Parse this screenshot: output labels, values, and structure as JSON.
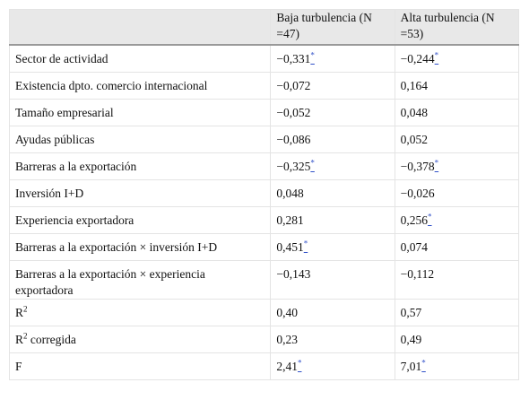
{
  "table": {
    "header": [
      "",
      "Baja turbulencia (N =47)",
      "Alta turbulencia (N =53)"
    ],
    "rows": [
      {
        "label": "Sector de actividad",
        "cells": [
          {
            "text": "−0,331",
            "note": "*"
          },
          {
            "text": "−0,244",
            "note": "*"
          }
        ]
      },
      {
        "label": "Existencia dpto. comercio internacional",
        "cells": [
          {
            "text": "−0,072"
          },
          {
            "text": "0,164"
          }
        ]
      },
      {
        "label": "Tamaño empresarial",
        "cells": [
          {
            "text": "−0,052"
          },
          {
            "text": "0,048"
          }
        ]
      },
      {
        "label": "Ayudas públicas",
        "cells": [
          {
            "text": "−0,086"
          },
          {
            "text": "0,052"
          }
        ]
      },
      {
        "label": "Barreras a la exportación",
        "cells": [
          {
            "text": "−0,325",
            "note": "*"
          },
          {
            "text": "−0,378",
            "note": "*"
          }
        ]
      },
      {
        "label": "Inversión I+D",
        "cells": [
          {
            "text": "0,048"
          },
          {
            "text": "−0,026"
          }
        ]
      },
      {
        "label": "Experiencia exportadora",
        "cells": [
          {
            "text": "0,281"
          },
          {
            "text": "0,256",
            "note": "*"
          }
        ]
      },
      {
        "label": "Barreras a la exportación × inversión I+D",
        "cells": [
          {
            "text": "0,451",
            "note": "*"
          },
          {
            "text": "0,074"
          }
        ]
      },
      {
        "label": "Barreras a la exportación × experiencia exportadora",
        "cells": [
          {
            "text": "−0,143"
          },
          {
            "text": "−0,112"
          }
        ]
      },
      {
        "label": "R",
        "sup": "2",
        "cells": [
          {
            "text": "0,40"
          },
          {
            "text": "0,57"
          }
        ]
      },
      {
        "label": "R",
        "sup": "2",
        "suffix": " corregida",
        "cells": [
          {
            "text": "0,23"
          },
          {
            "text": "0,49"
          }
        ]
      },
      {
        "label": "F",
        "cells": [
          {
            "text": "2,41",
            "note": "*"
          },
          {
            "text": "7,01",
            "note": "*"
          }
        ]
      }
    ]
  }
}
